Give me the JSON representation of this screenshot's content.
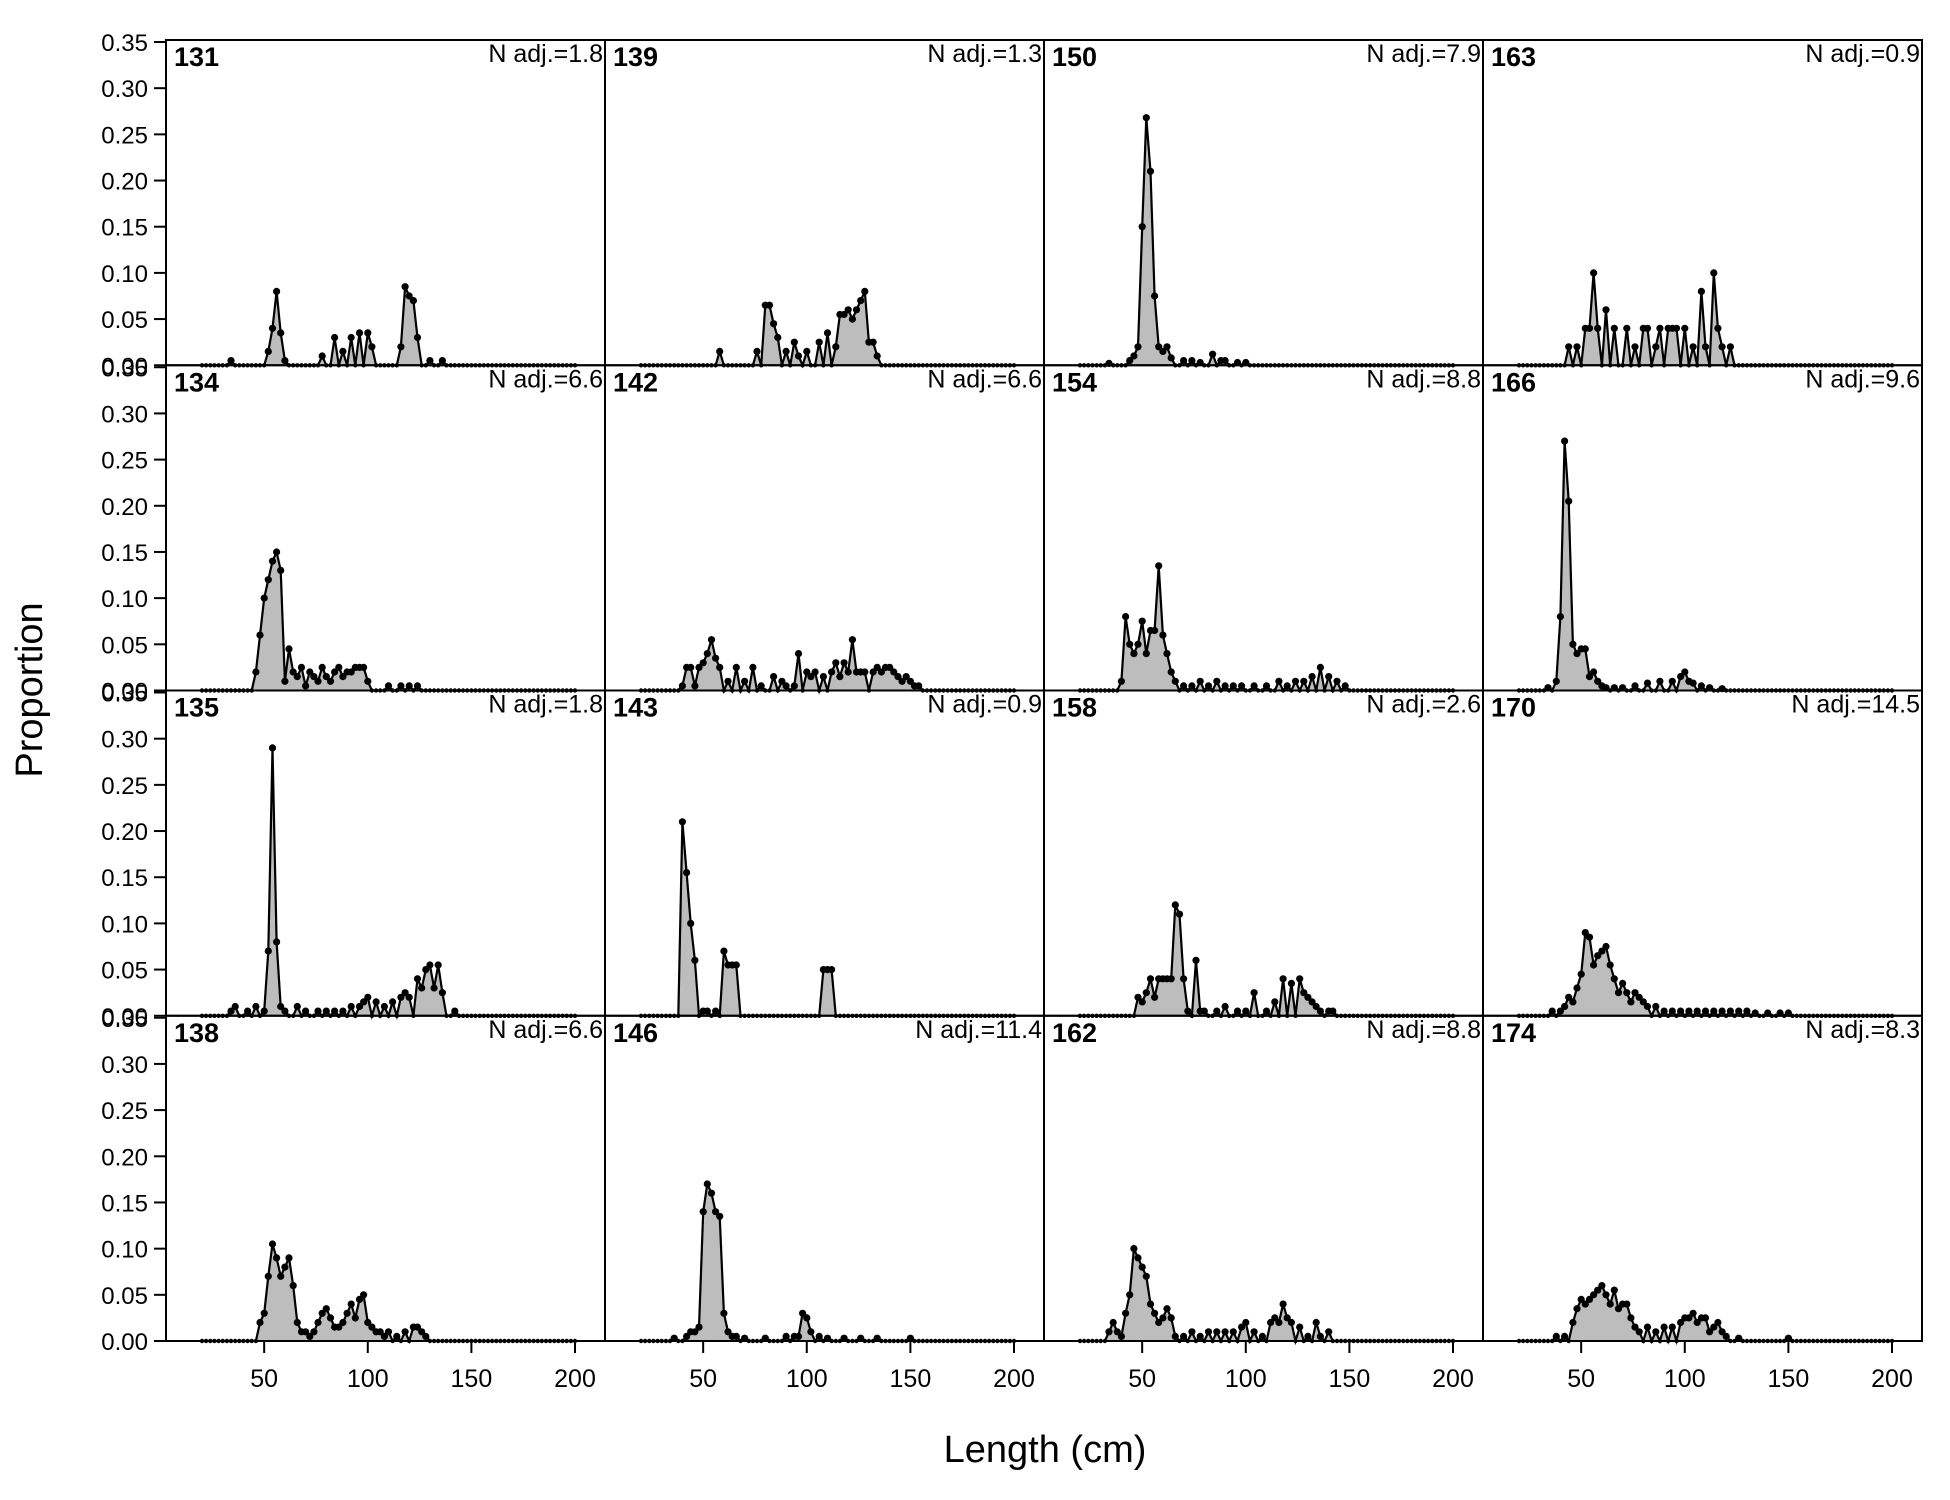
{
  "figure": {
    "xlabel": "Length (cm)",
    "ylabel": "Proportion"
  },
  "colors": {
    "fill": "#bdbdbd",
    "line": "#000000",
    "background": "#ffffff"
  },
  "chart_data": {
    "type": "area",
    "layout": "4x4 panel grid, shared axes",
    "xlim": [
      20,
      200
    ],
    "ylim": [
      0,
      0.35
    ],
    "x_ticks": [
      50,
      100,
      150,
      200
    ],
    "y_ticks": [
      "0.00",
      "0.05",
      "0.10",
      "0.15",
      "0.20",
      "0.25",
      "0.30",
      "0.35"
    ],
    "x_bin": 2,
    "panels": [
      {
        "id": "131",
        "n_adj": "N adj.=1.8",
        "x": [
          34,
          52,
          54,
          56,
          58,
          60,
          78,
          84,
          88,
          92,
          96,
          100,
          102,
          116,
          118,
          120,
          122,
          124,
          130,
          136
        ],
        "y": [
          0.005,
          0.015,
          0.04,
          0.08,
          0.035,
          0.005,
          0.01,
          0.03,
          0.015,
          0.03,
          0.035,
          0.035,
          0.02,
          0.02,
          0.085,
          0.075,
          0.07,
          0.03,
          0.005,
          0.005
        ]
      },
      {
        "id": "139",
        "n_adj": "N adj.=1.3",
        "x": [
          58,
          76,
          80,
          82,
          84,
          86,
          90,
          94,
          96,
          100,
          106,
          110,
          114,
          116,
          118,
          120,
          122,
          124,
          126,
          128,
          130,
          132,
          134
        ],
        "y": [
          0.015,
          0.015,
          0.065,
          0.065,
          0.045,
          0.03,
          0.015,
          0.025,
          0.01,
          0.015,
          0.025,
          0.035,
          0.02,
          0.055,
          0.055,
          0.06,
          0.05,
          0.06,
          0.07,
          0.08,
          0.025,
          0.025,
          0.01
        ]
      },
      {
        "id": "150",
        "n_adj": "N adj.=7.9",
        "x": [
          34,
          44,
          46,
          48,
          50,
          52,
          54,
          56,
          58,
          60,
          62,
          64,
          70,
          74,
          78,
          84,
          88,
          90,
          96,
          100
        ],
        "y": [
          0.002,
          0.005,
          0.01,
          0.02,
          0.15,
          0.268,
          0.21,
          0.075,
          0.02,
          0.015,
          0.02,
          0.008,
          0.005,
          0.005,
          0.003,
          0.012,
          0.005,
          0.005,
          0.003,
          0.003
        ]
      },
      {
        "id": "163",
        "n_adj": "N adj.=0.9",
        "x": [
          44,
          48,
          52,
          54,
          56,
          58,
          62,
          66,
          72,
          76,
          80,
          82,
          86,
          88,
          92,
          94,
          96,
          100,
          104,
          108,
          110,
          114,
          116,
          118,
          122
        ],
        "y": [
          0.02,
          0.02,
          0.04,
          0.04,
          0.1,
          0.04,
          0.06,
          0.04,
          0.04,
          0.02,
          0.04,
          0.04,
          0.02,
          0.04,
          0.04,
          0.04,
          0.04,
          0.04,
          0.02,
          0.08,
          0.02,
          0.1,
          0.04,
          0.02,
          0.02
        ]
      },
      {
        "id": "134",
        "n_adj": "N adj.=6.6",
        "x": [
          46,
          48,
          50,
          52,
          54,
          56,
          58,
          60,
          62,
          64,
          66,
          68,
          70,
          72,
          74,
          76,
          78,
          80,
          82,
          84,
          86,
          88,
          90,
          92,
          94,
          96,
          98,
          100,
          110,
          116,
          120,
          124
        ],
        "y": [
          0.02,
          0.06,
          0.1,
          0.12,
          0.14,
          0.15,
          0.13,
          0.01,
          0.045,
          0.02,
          0.015,
          0.025,
          0.005,
          0.02,
          0.015,
          0.01,
          0.025,
          0.015,
          0.01,
          0.02,
          0.025,
          0.015,
          0.02,
          0.02,
          0.025,
          0.025,
          0.025,
          0.01,
          0.005,
          0.005,
          0.005,
          0.005
        ]
      },
      {
        "id": "142",
        "n_adj": "N adj.=6.6",
        "x": [
          40,
          42,
          44,
          46,
          48,
          50,
          52,
          54,
          56,
          58,
          62,
          66,
          70,
          74,
          78,
          84,
          88,
          90,
          94,
          96,
          100,
          102,
          104,
          108,
          112,
          114,
          116,
          118,
          120,
          122,
          124,
          126,
          128,
          132,
          134,
          136,
          138,
          140,
          142,
          144,
          146,
          148,
          150,
          152,
          154
        ],
        "y": [
          0.005,
          0.025,
          0.025,
          0.005,
          0.025,
          0.03,
          0.04,
          0.055,
          0.035,
          0.025,
          0.01,
          0.025,
          0.01,
          0.025,
          0.005,
          0.015,
          0.01,
          0.005,
          0.005,
          0.04,
          0.02,
          0.015,
          0.02,
          0.015,
          0.02,
          0.03,
          0.015,
          0.03,
          0.02,
          0.055,
          0.02,
          0.02,
          0.02,
          0.02,
          0.025,
          0.02,
          0.025,
          0.025,
          0.02,
          0.015,
          0.01,
          0.015,
          0.01,
          0.005,
          0.005
        ]
      },
      {
        "id": "154",
        "n_adj": "N adj.=8.8",
        "x": [
          40,
          42,
          44,
          46,
          48,
          50,
          52,
          54,
          56,
          58,
          60,
          62,
          64,
          66,
          70,
          74,
          78,
          82,
          86,
          90,
          94,
          98,
          104,
          110,
          116,
          120,
          124,
          128,
          132,
          136,
          140,
          144,
          148
        ],
        "y": [
          0.01,
          0.08,
          0.05,
          0.04,
          0.05,
          0.075,
          0.04,
          0.065,
          0.065,
          0.135,
          0.06,
          0.04,
          0.02,
          0.01,
          0.005,
          0.005,
          0.01,
          0.005,
          0.01,
          0.005,
          0.005,
          0.005,
          0.005,
          0.005,
          0.01,
          0.005,
          0.01,
          0.01,
          0.015,
          0.025,
          0.015,
          0.01,
          0.005
        ]
      },
      {
        "id": "166",
        "n_adj": "N adj.=9.6",
        "x": [
          34,
          38,
          40,
          42,
          44,
          46,
          48,
          50,
          52,
          54,
          56,
          58,
          60,
          62,
          66,
          70,
          76,
          82,
          88,
          94,
          98,
          100,
          102,
          104,
          108,
          112,
          118
        ],
        "y": [
          0.003,
          0.01,
          0.08,
          0.27,
          0.205,
          0.05,
          0.04,
          0.045,
          0.045,
          0.015,
          0.02,
          0.01,
          0.005,
          0.003,
          0.003,
          0.003,
          0.005,
          0.008,
          0.01,
          0.01,
          0.015,
          0.02,
          0.01,
          0.008,
          0.005,
          0.003,
          0.002
        ]
      },
      {
        "id": "135",
        "n_adj": "N adj.=1.8",
        "x": [
          34,
          36,
          42,
          46,
          50,
          52,
          54,
          56,
          58,
          60,
          66,
          70,
          76,
          80,
          84,
          88,
          92,
          96,
          98,
          100,
          104,
          108,
          112,
          116,
          118,
          120,
          124,
          126,
          128,
          130,
          132,
          134,
          136,
          142
        ],
        "y": [
          0.005,
          0.01,
          0.005,
          0.01,
          0.005,
          0.07,
          0.29,
          0.08,
          0.01,
          0.005,
          0.01,
          0.005,
          0.005,
          0.005,
          0.005,
          0.005,
          0.01,
          0.01,
          0.015,
          0.02,
          0.015,
          0.01,
          0.015,
          0.02,
          0.025,
          0.02,
          0.04,
          0.03,
          0.05,
          0.055,
          0.03,
          0.055,
          0.025,
          0.005
        ]
      },
      {
        "id": "143",
        "n_adj": "N adj.=0.9",
        "x": [
          40,
          42,
          44,
          46,
          50,
          52,
          56,
          60,
          62,
          64,
          66,
          108,
          110,
          112
        ],
        "y": [
          0.21,
          0.155,
          0.1,
          0.06,
          0.005,
          0.005,
          0.005,
          0.07,
          0.055,
          0.055,
          0.055,
          0.05,
          0.05,
          0.05
        ]
      },
      {
        "id": "158",
        "n_adj": "N adj.=2.6",
        "x": [
          48,
          50,
          52,
          54,
          56,
          58,
          60,
          62,
          64,
          66,
          68,
          70,
          72,
          76,
          78,
          80,
          86,
          90,
          96,
          100,
          104,
          110,
          114,
          118,
          122,
          126,
          128,
          130,
          132,
          134,
          136,
          140,
          142
        ],
        "y": [
          0.02,
          0.015,
          0.025,
          0.04,
          0.02,
          0.04,
          0.04,
          0.04,
          0.04,
          0.12,
          0.11,
          0.04,
          0.005,
          0.06,
          0.005,
          0.005,
          0.005,
          0.01,
          0.005,
          0.005,
          0.025,
          0.005,
          0.015,
          0.04,
          0.035,
          0.04,
          0.025,
          0.02,
          0.015,
          0.01,
          0.005,
          0.005,
          0.005
        ]
      },
      {
        "id": "170",
        "n_adj": "N adj.=14.5",
        "x": [
          36,
          40,
          42,
          44,
          46,
          48,
          50,
          52,
          54,
          56,
          58,
          60,
          62,
          64,
          66,
          68,
          70,
          72,
          74,
          76,
          78,
          80,
          82,
          86,
          90,
          94,
          98,
          102,
          106,
          110,
          114,
          118,
          122,
          126,
          130,
          134,
          140,
          146,
          150
        ],
        "y": [
          0.005,
          0.005,
          0.01,
          0.02,
          0.015,
          0.03,
          0.045,
          0.09,
          0.085,
          0.055,
          0.065,
          0.07,
          0.075,
          0.055,
          0.04,
          0.025,
          0.035,
          0.025,
          0.015,
          0.025,
          0.02,
          0.015,
          0.01,
          0.01,
          0.005,
          0.005,
          0.005,
          0.005,
          0.005,
          0.005,
          0.005,
          0.005,
          0.005,
          0.005,
          0.005,
          0.003,
          0.003,
          0.003,
          0.003
        ]
      },
      {
        "id": "138",
        "n_adj": "N adj.=6.6",
        "x": [
          48,
          50,
          52,
          54,
          56,
          58,
          60,
          62,
          64,
          66,
          68,
          70,
          72,
          74,
          76,
          78,
          80,
          82,
          84,
          86,
          88,
          90,
          92,
          94,
          96,
          98,
          100,
          102,
          104,
          106,
          108,
          110,
          114,
          118,
          122,
          124,
          126,
          128
        ],
        "y": [
          0.02,
          0.03,
          0.07,
          0.105,
          0.09,
          0.07,
          0.08,
          0.09,
          0.06,
          0.02,
          0.01,
          0.01,
          0.005,
          0.01,
          0.02,
          0.03,
          0.035,
          0.025,
          0.015,
          0.015,
          0.02,
          0.03,
          0.04,
          0.025,
          0.045,
          0.05,
          0.02,
          0.015,
          0.01,
          0.01,
          0.005,
          0.01,
          0.005,
          0.01,
          0.015,
          0.015,
          0.01,
          0.005
        ]
      },
      {
        "id": "146",
        "n_adj": "N adj.=11.4",
        "x": [
          36,
          42,
          44,
          46,
          48,
          50,
          52,
          54,
          56,
          58,
          60,
          62,
          64,
          66,
          70,
          80,
          90,
          94,
          96,
          98,
          100,
          102,
          106,
          110,
          118,
          126,
          134,
          150
        ],
        "y": [
          0.003,
          0.005,
          0.01,
          0.01,
          0.015,
          0.14,
          0.17,
          0.16,
          0.14,
          0.135,
          0.03,
          0.01,
          0.005,
          0.005,
          0.003,
          0.003,
          0.005,
          0.005,
          0.005,
          0.03,
          0.025,
          0.01,
          0.005,
          0.003,
          0.003,
          0.003,
          0.003,
          0.003
        ]
      },
      {
        "id": "162",
        "n_adj": "N adj.=8.8",
        "x": [
          34,
          36,
          38,
          40,
          42,
          44,
          46,
          48,
          50,
          52,
          54,
          56,
          58,
          60,
          62,
          64,
          66,
          70,
          74,
          78,
          82,
          86,
          90,
          94,
          98,
          100,
          104,
          108,
          112,
          114,
          116,
          118,
          120,
          122,
          126,
          130,
          134,
          136,
          140
        ],
        "y": [
          0.01,
          0.02,
          0.01,
          0.005,
          0.03,
          0.05,
          0.1,
          0.09,
          0.08,
          0.07,
          0.04,
          0.03,
          0.02,
          0.025,
          0.035,
          0.025,
          0.005,
          0.005,
          0.01,
          0.005,
          0.01,
          0.01,
          0.01,
          0.01,
          0.015,
          0.02,
          0.01,
          0.005,
          0.02,
          0.025,
          0.02,
          0.04,
          0.025,
          0.02,
          0.015,
          0.005,
          0.02,
          0.005,
          0.01
        ]
      },
      {
        "id": "174",
        "n_adj": "N adj.=8.3",
        "x": [
          38,
          42,
          46,
          48,
          50,
          52,
          54,
          56,
          58,
          60,
          62,
          64,
          66,
          68,
          70,
          72,
          74,
          76,
          78,
          82,
          86,
          90,
          94,
          98,
          100,
          102,
          104,
          106,
          108,
          110,
          112,
          114,
          116,
          118,
          120,
          126,
          150
        ],
        "y": [
          0.005,
          0.005,
          0.02,
          0.035,
          0.045,
          0.04,
          0.045,
          0.05,
          0.055,
          0.06,
          0.05,
          0.04,
          0.055,
          0.035,
          0.04,
          0.04,
          0.025,
          0.015,
          0.01,
          0.015,
          0.01,
          0.015,
          0.015,
          0.02,
          0.025,
          0.025,
          0.03,
          0.02,
          0.025,
          0.025,
          0.01,
          0.015,
          0.02,
          0.01,
          0.005,
          0.003,
          0.003
        ]
      }
    ]
  }
}
